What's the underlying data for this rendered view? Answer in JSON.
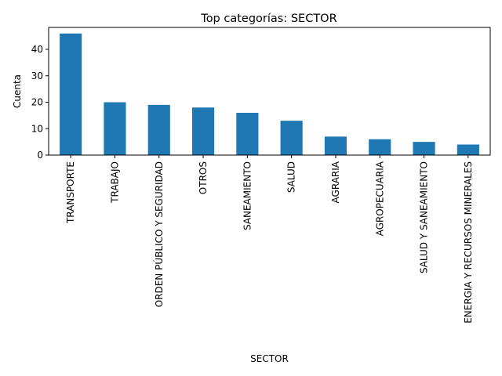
{
  "chart_data": {
    "type": "bar",
    "title": "Top categorías: SECTOR",
    "xlabel": "SECTOR",
    "ylabel": "Cuenta",
    "categories": [
      "TRANSPORTE",
      "TRABAJO",
      "ORDEN PÚBLICO Y SEGURIDAD",
      "OTROS",
      "SANEAMIENTO",
      "SALUD",
      "AGRARIA",
      "AGROPECUARIA",
      "SALUD Y SANEAMIENTO",
      "ENERGIA Y RECURSOS MINERALES"
    ],
    "values": [
      46,
      20,
      19,
      18,
      16,
      13,
      7,
      6,
      5,
      4
    ],
    "ylim": [
      0,
      48.3
    ],
    "yticks": [
      0,
      10,
      20,
      30,
      40
    ],
    "grid": false,
    "bar_color": "#1f77b4"
  }
}
